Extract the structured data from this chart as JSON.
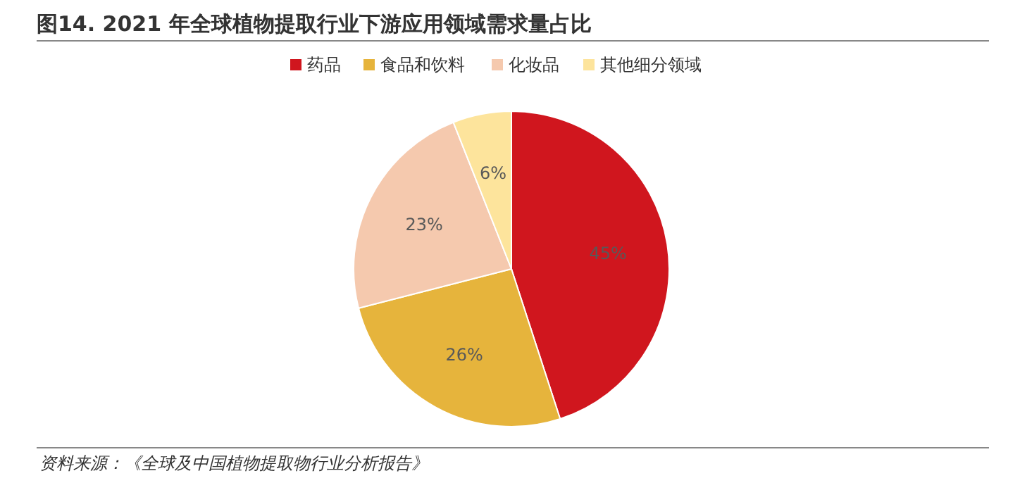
{
  "chart_data": {
    "type": "pie",
    "title": "图14. 2021 年全球植物提取行业下游应用领域需求量占比",
    "categories": [
      "药品",
      "食品和饮料",
      "化妆品",
      "其他细分领域"
    ],
    "values": [
      45,
      26,
      23,
      6
    ],
    "colors": [
      "#d0161e",
      "#e6b43c",
      "#f5c9ae",
      "#fde49c"
    ],
    "value_labels": [
      "45%",
      "26%",
      "23%",
      "6%"
    ],
    "legend": "top",
    "annotations": [
      "资料来源：《全球及中国植物提取物行业分析报告》"
    ]
  }
}
